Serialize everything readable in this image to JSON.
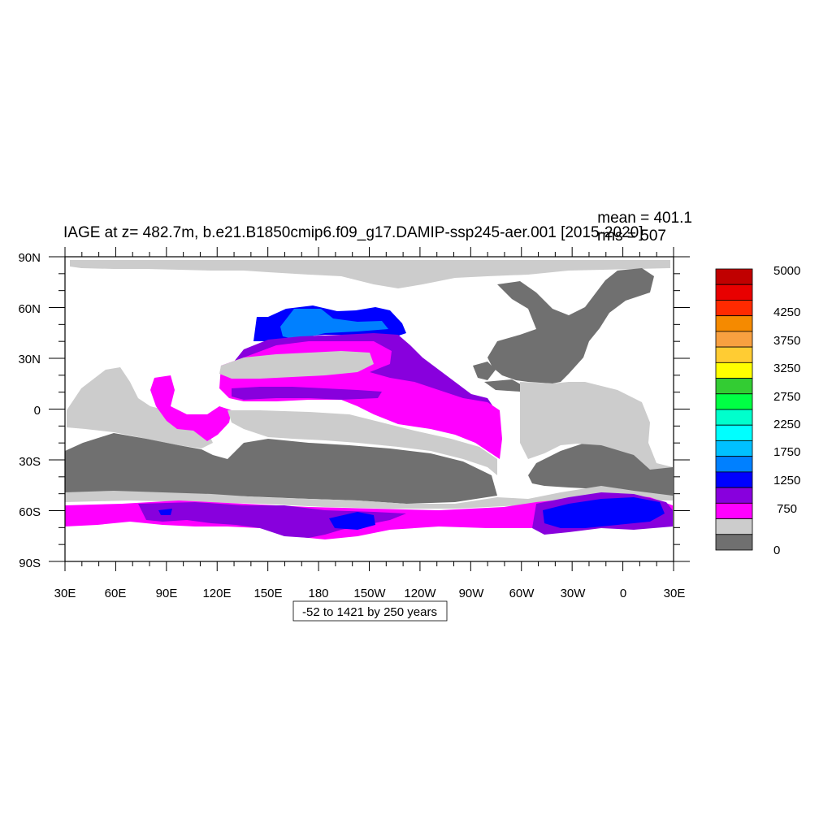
{
  "title": "IAGE at z= 482.7m, b.e21.B1850cmip6.f09_g17.DAMIP-ssp245-aer.001 [2015-2020]",
  "stats": {
    "mean": "mean = 401.1",
    "rms": "rms = 507"
  },
  "footer_label": "-52 to 1421 by 250 years",
  "lat_ticks": [
    "90N",
    "60N",
    "30N",
    "0",
    "30S",
    "60S",
    "90S"
  ],
  "lon_ticks": [
    "30E",
    "60E",
    "90E",
    "120E",
    "150E",
    "180",
    "150W",
    "120W",
    "90W",
    "60W",
    "30W",
    "0",
    "30E"
  ],
  "colorbar": {
    "labels": [
      "5000",
      "4250",
      "3750",
      "3250",
      "2750",
      "2250",
      "1750",
      "1250",
      "750",
      "0"
    ],
    "colors_top_to_bottom": [
      "#c00000",
      "#e80000",
      "#ff2a00",
      "#f58a00",
      "#f8a040",
      "#ffcc33",
      "#ffff00",
      "#33cc33",
      "#00ff44",
      "#00ffcc",
      "#00ffff",
      "#00c0ff",
      "#0080ff",
      "#0000ff",
      "#8800dd",
      "#ff00ff",
      "#cccccc",
      "#707070"
    ]
  },
  "chart_data": {
    "type": "heatmap",
    "variable": "IAGE",
    "depth": "482.7m",
    "x_range": [
      30,
      390
    ],
    "y_range": [
      -90,
      90
    ],
    "mean": 401.1,
    "rms": 507,
    "contour_min": -52,
    "contour_max": 1421,
    "contour_interval": 250,
    "units": "years"
  }
}
